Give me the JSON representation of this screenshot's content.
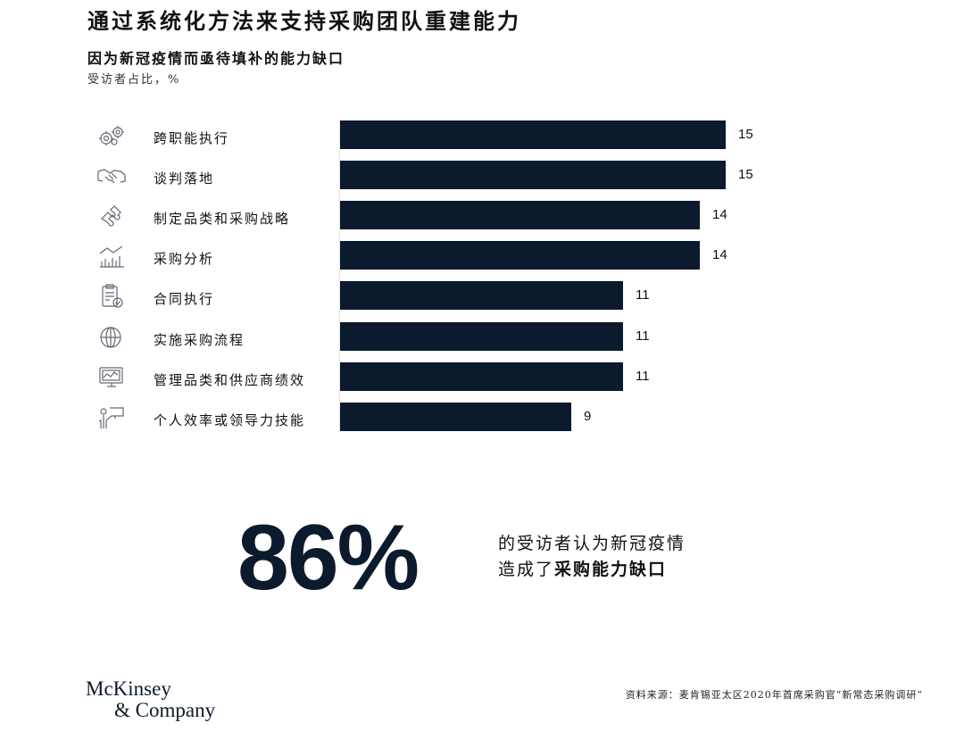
{
  "page": {
    "title": "通过系统化方法来支持采购团队重建能力",
    "subtitle": "因为新冠疫情而亟待填补的能力缺口",
    "unit": "受访者占比，%"
  },
  "chart_data": {
    "type": "bar",
    "orientation": "horizontal",
    "title": "因为新冠疫情而亟待填补的能力缺口",
    "ylabel": "受访者占比，%",
    "categories": [
      "跨职能执行",
      "谈判落地",
      "制定品类和采购战略",
      "采购分析",
      "合同执行",
      "实施采购流程",
      "管理品类和供应商绩效",
      "个人效率或领导力技能"
    ],
    "values": [
      15,
      15,
      14,
      14,
      11,
      11,
      11,
      9
    ],
    "icons": [
      "gears-icon",
      "handshake-icon",
      "puzzle-icon",
      "bar-chart-icon",
      "clipboard-check-icon",
      "globe-icon",
      "monitor-chart-icon",
      "presenter-icon"
    ],
    "bar_color": "#0b1a2c",
    "grid": false
  },
  "highlight": {
    "stat": "86%",
    "line1": "的受访者认为新冠疫情",
    "line2_prefix": "造成了",
    "line2_bold": "采购能力缺口"
  },
  "footer": {
    "logo_line1": "McKinsey",
    "logo_line2": "& Company",
    "source": "资料来源：麦肯锡亚太区2020年首席采购官“新常态采购调研”"
  }
}
